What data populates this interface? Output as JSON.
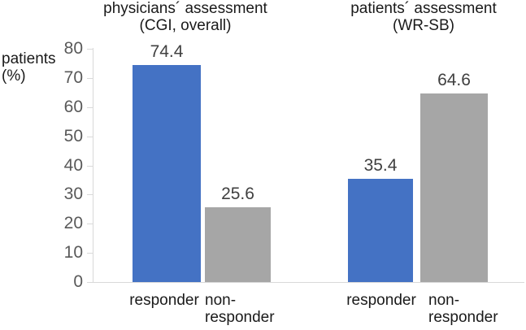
{
  "chart_data": {
    "type": "bar",
    "title": "",
    "ylabel": "patients (%)",
    "ylabel_lines": [
      "patients",
      "(%)"
    ],
    "ylim": [
      0,
      80
    ],
    "yticks": [
      0,
      10,
      20,
      30,
      40,
      50,
      60,
      70,
      80
    ],
    "grid": false,
    "legend": null,
    "groups": [
      {
        "title_line1": "physicians´ assessment",
        "title_line2": "(CGI, overall)",
        "series": [
          {
            "category": "responder",
            "value": 74.4,
            "value_label": "74.4",
            "color": "#4472C4"
          },
          {
            "category": "non-responder",
            "value": 25.6,
            "value_label": "25.6",
            "color": "#A6A6A6"
          }
        ]
      },
      {
        "title_line1": "patients´ assessment",
        "title_line2": "(WR-SB)",
        "series": [
          {
            "category": "responder",
            "value": 35.4,
            "value_label": "35.4",
            "color": "#4472C4"
          },
          {
            "category": "non-responder",
            "value": 64.6,
            "value_label": "64.6",
            "color": "#A6A6A6"
          }
        ]
      }
    ],
    "colors": {
      "responder_bar": "#4472C4",
      "non_responder_bar": "#A6A6A6",
      "axis_line": "#D9D9D9",
      "tick_label": "#595959",
      "value_label": "#404040",
      "text": "#1A1A1A"
    }
  }
}
